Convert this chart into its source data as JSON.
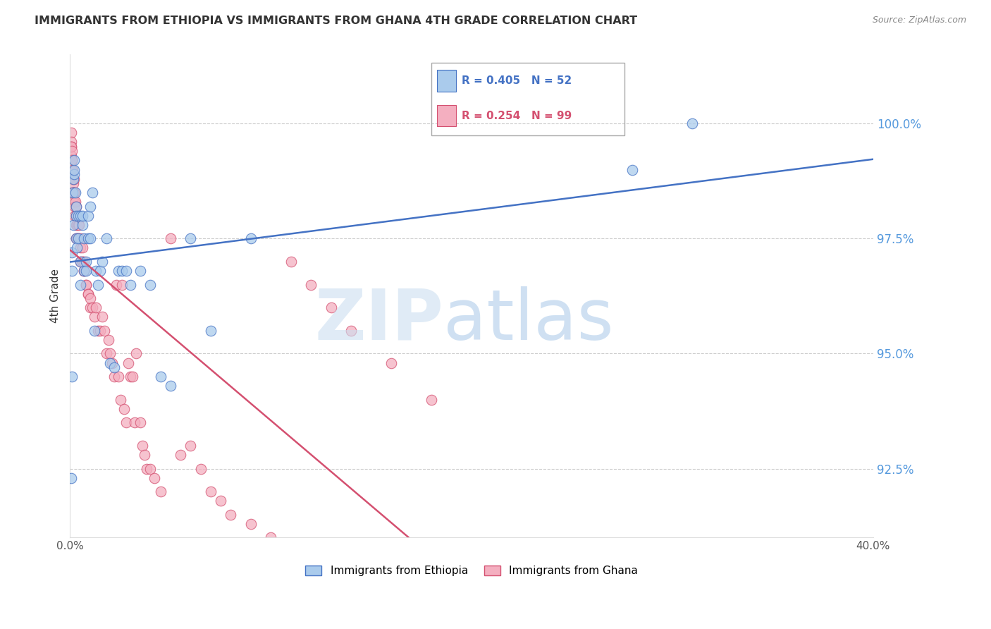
{
  "title": "IMMIGRANTS FROM ETHIOPIA VS IMMIGRANTS FROM GHANA 4TH GRADE CORRELATION CHART",
  "source": "Source: ZipAtlas.com",
  "ylabel": "4th Grade",
  "xlim": [
    0.0,
    0.4
  ],
  "ylim": [
    91.0,
    101.5
  ],
  "xtick_positions": [
    0.0,
    0.08,
    0.16,
    0.24,
    0.32,
    0.4
  ],
  "xticklabels": [
    "0.0%",
    "",
    "",
    "",
    "",
    "40.0%"
  ],
  "ytick_positions": [
    92.5,
    95.0,
    97.5,
    100.0
  ],
  "yticklabels": [
    "92.5%",
    "95.0%",
    "97.5%",
    "100.0%"
  ],
  "legend_r1": "R = 0.405",
  "legend_n1": "N = 52",
  "legend_r2": "R = 0.254",
  "legend_n2": "N = 99",
  "blue_color": "#aacbec",
  "pink_color": "#f4afc0",
  "line_blue": "#4472c4",
  "line_pink": "#d45070",
  "ethiopia_x": [
    0.0005,
    0.0008,
    0.001,
    0.001,
    0.0012,
    0.0015,
    0.0015,
    0.002,
    0.002,
    0.002,
    0.0025,
    0.003,
    0.003,
    0.003,
    0.0035,
    0.004,
    0.004,
    0.005,
    0.005,
    0.005,
    0.006,
    0.006,
    0.007,
    0.007,
    0.008,
    0.008,
    0.009,
    0.009,
    0.01,
    0.01,
    0.011,
    0.012,
    0.013,
    0.014,
    0.015,
    0.016,
    0.018,
    0.02,
    0.022,
    0.024,
    0.026,
    0.028,
    0.03,
    0.035,
    0.04,
    0.045,
    0.05,
    0.06,
    0.07,
    0.09,
    0.28,
    0.31
  ],
  "ethiopia_y": [
    92.3,
    94.5,
    96.8,
    97.2,
    98.5,
    98.8,
    97.8,
    98.9,
    99.0,
    99.2,
    98.5,
    97.5,
    98.2,
    98.0,
    97.3,
    98.0,
    97.5,
    98.0,
    96.5,
    97.0,
    97.8,
    98.0,
    97.5,
    96.8,
    97.0,
    96.8,
    97.5,
    98.0,
    97.5,
    98.2,
    98.5,
    95.5,
    96.8,
    96.5,
    96.8,
    97.0,
    97.5,
    94.8,
    94.7,
    96.8,
    96.8,
    96.8,
    96.5,
    96.8,
    96.5,
    94.5,
    94.3,
    97.5,
    95.5,
    97.5,
    99.0,
    100.0
  ],
  "ghana_x": [
    0.0002,
    0.0003,
    0.0004,
    0.0004,
    0.0005,
    0.0005,
    0.0006,
    0.0007,
    0.0008,
    0.0008,
    0.0009,
    0.001,
    0.001,
    0.001,
    0.0012,
    0.0012,
    0.0013,
    0.0014,
    0.0015,
    0.0015,
    0.0016,
    0.0017,
    0.0018,
    0.002,
    0.002,
    0.002,
    0.0022,
    0.0023,
    0.0025,
    0.003,
    0.003,
    0.003,
    0.003,
    0.0032,
    0.0035,
    0.004,
    0.004,
    0.004,
    0.0045,
    0.005,
    0.005,
    0.005,
    0.006,
    0.006,
    0.006,
    0.007,
    0.007,
    0.007,
    0.008,
    0.008,
    0.009,
    0.009,
    0.01,
    0.01,
    0.011,
    0.012,
    0.013,
    0.014,
    0.015,
    0.016,
    0.017,
    0.018,
    0.019,
    0.02,
    0.021,
    0.022,
    0.023,
    0.024,
    0.025,
    0.026,
    0.027,
    0.028,
    0.029,
    0.03,
    0.031,
    0.032,
    0.033,
    0.035,
    0.036,
    0.037,
    0.038,
    0.04,
    0.042,
    0.045,
    0.05,
    0.055,
    0.06,
    0.065,
    0.07,
    0.075,
    0.08,
    0.09,
    0.1,
    0.11,
    0.12,
    0.13,
    0.14,
    0.16,
    0.18
  ],
  "ghana_y": [
    99.2,
    99.5,
    99.8,
    99.6,
    99.5,
    99.3,
    99.5,
    99.0,
    99.2,
    99.4,
    99.0,
    99.2,
    98.8,
    98.5,
    99.0,
    98.8,
    98.5,
    98.3,
    98.5,
    98.7,
    98.5,
    98.5,
    98.3,
    98.5,
    98.8,
    98.5,
    98.2,
    98.0,
    98.3,
    98.0,
    98.2,
    97.8,
    97.5,
    97.8,
    97.5,
    97.8,
    97.5,
    97.5,
    97.8,
    97.5,
    97.3,
    97.0,
    97.3,
    97.0,
    97.0,
    96.8,
    97.0,
    96.8,
    96.5,
    96.5,
    96.3,
    96.3,
    96.0,
    96.2,
    96.0,
    95.8,
    96.0,
    95.5,
    95.5,
    95.8,
    95.5,
    95.0,
    95.3,
    95.0,
    94.8,
    94.5,
    96.5,
    94.5,
    94.0,
    96.5,
    93.8,
    93.5,
    94.8,
    94.5,
    94.5,
    93.5,
    95.0,
    93.5,
    93.0,
    92.8,
    92.5,
    92.5,
    92.3,
    92.0,
    97.5,
    92.8,
    93.0,
    92.5,
    92.0,
    91.8,
    91.5,
    91.3,
    91.0,
    97.0,
    96.5,
    96.0,
    95.5,
    94.8,
    94.0
  ]
}
